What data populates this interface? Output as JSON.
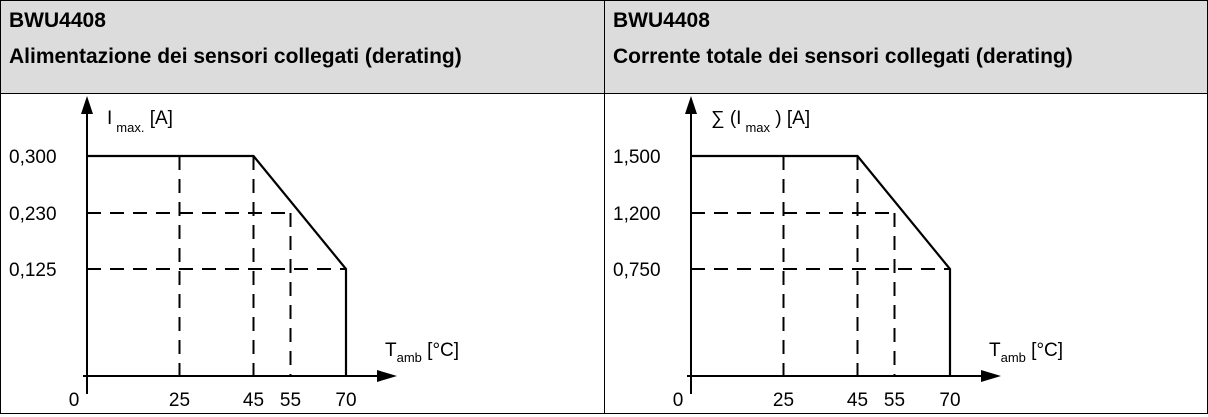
{
  "panels": [
    {
      "title_line1": "BWU4408",
      "title_line2": "Alimentazione dei sensori collegati (derating)",
      "y_prefix": "I",
      "y_sub": "max.",
      "y_suffix": " [A]",
      "x_main": "T",
      "x_sub": "amb",
      "x_suffix": " [°C]",
      "origin_label": "0"
    },
    {
      "title_line1": "BWU4408",
      "title_line2": "Corrente totale dei sensori collegati (derating)",
      "y_prefix": "∑ (I",
      "y_sub": "max",
      "y_suffix": " ) [A]",
      "x_main": "T",
      "x_sub": "amb",
      "x_suffix": " [°C]",
      "origin_label": "0"
    }
  ],
  "chart_data": [
    {
      "type": "line",
      "title": "Alimentazione dei sensori collegati (derating)",
      "xlabel": "Tamb [°C]",
      "ylabel": "Imax. [A]",
      "x_ticks": [
        "25",
        "45",
        "55",
        "70"
      ],
      "y_ticks": [
        "0,125",
        "0,230",
        "0,300"
      ],
      "series": [
        {
          "x": [
            0,
            45,
            70,
            70
          ],
          "y": [
            0.3,
            0.3,
            0.125,
            0
          ]
        }
      ],
      "reference_points": [
        {
          "x": 25,
          "y": 0.3
        },
        {
          "x": 45,
          "y": 0.3
        },
        {
          "x": 55,
          "y": 0.23
        },
        {
          "x": 70,
          "y": 0.125
        }
      ],
      "grid": false
    },
    {
      "type": "line",
      "title": "Corrente totale dei sensori collegati (derating)",
      "xlabel": "Tamb [°C]",
      "ylabel": "∑ (Imax ) [A]",
      "x_ticks": [
        "25",
        "45",
        "55",
        "70"
      ],
      "y_ticks": [
        "0,750",
        "1,200",
        "1,500"
      ],
      "series": [
        {
          "x": [
            0,
            45,
            70,
            70
          ],
          "y": [
            1.5,
            1.5,
            0.75,
            0
          ]
        }
      ],
      "reference_points": [
        {
          "x": 25,
          "y": 1.5
        },
        {
          "x": 45,
          "y": 1.5
        },
        {
          "x": 55,
          "y": 1.2
        },
        {
          "x": 70,
          "y": 0.75
        }
      ],
      "grid": false
    }
  ]
}
